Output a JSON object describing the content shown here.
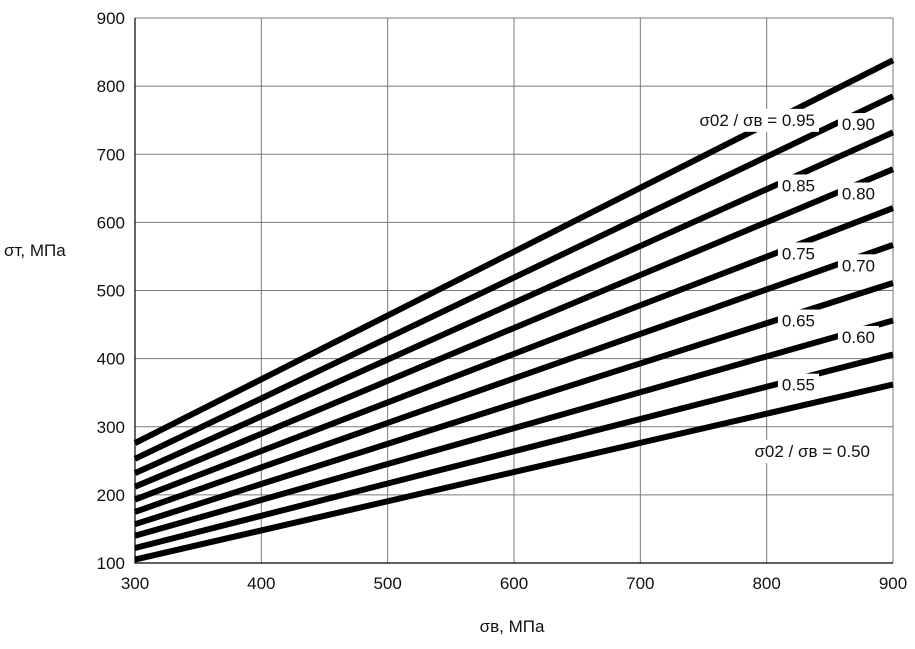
{
  "chart_data": {
    "type": "line",
    "title": "",
    "xlabel": "σв, МПа",
    "ylabel": "σт, МПа",
    "xlim": [
      300,
      900
    ],
    "ylim": [
      100,
      900
    ],
    "x_ticks": [
      300,
      400,
      500,
      600,
      700,
      800,
      900
    ],
    "y_ticks": [
      100,
      200,
      300,
      400,
      500,
      600,
      700,
      800,
      900
    ],
    "grid": true,
    "legend": "none",
    "series": [
      {
        "label": "σ02 / σв = 0.95",
        "x": [
          300,
          900
        ],
        "y": [
          276,
          838
        ]
      },
      {
        "label": "0.90",
        "x": [
          300,
          900
        ],
        "y": [
          253,
          785
        ]
      },
      {
        "label": "0.85",
        "x": [
          300,
          900
        ],
        "y": [
          232,
          732
        ]
      },
      {
        "label": "0.80",
        "x": [
          300,
          900
        ],
        "y": [
          212,
          678
        ]
      },
      {
        "label": "0.75",
        "x": [
          300,
          900
        ],
        "y": [
          193,
          621
        ]
      },
      {
        "label": "0.70",
        "x": [
          300,
          900
        ],
        "y": [
          175,
          567
        ]
      },
      {
        "label": "0.65",
        "x": [
          300,
          900
        ],
        "y": [
          157,
          511
        ]
      },
      {
        "label": "0.60",
        "x": [
          300,
          900
        ],
        "y": [
          140,
          456
        ]
      },
      {
        "label": "0.55",
        "x": [
          300,
          900
        ],
        "y": [
          122,
          406
        ]
      },
      {
        "label": "σ02 / σв = 0.50",
        "x": [
          300,
          900
        ],
        "y": [
          105,
          362
        ]
      }
    ]
  }
}
